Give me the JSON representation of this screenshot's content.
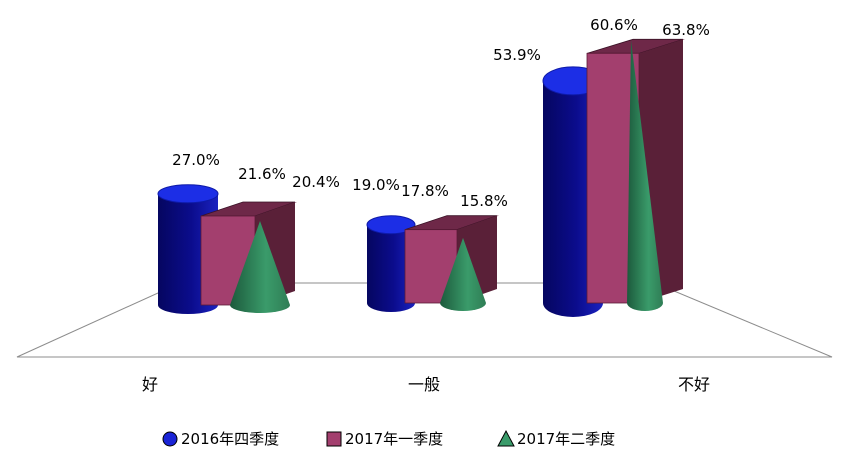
{
  "chart_data": {
    "type": "bar",
    "categories": [
      "好",
      "一般",
      "不好"
    ],
    "series": [
      {
        "name": "2016年四季度",
        "shape": "cylinder",
        "values": [
          27.0,
          19.0,
          53.9
        ],
        "labels": [
          "27.0%",
          "19.0%",
          "53.9%"
        ]
      },
      {
        "name": "2017年一季度",
        "shape": "box",
        "values": [
          21.6,
          17.8,
          60.6
        ],
        "labels": [
          "21.6%",
          "17.8%",
          "60.6%"
        ]
      },
      {
        "name": "2017年二季度",
        "shape": "cone",
        "values": [
          20.4,
          15.8,
          63.8
        ],
        "labels": [
          "20.4%",
          "15.8%",
          "63.8%"
        ]
      }
    ],
    "title": "",
    "xlabel": "",
    "ylabel": "",
    "unit": "%",
    "grid": false,
    "legend_position": "bottom"
  },
  "colors": {
    "cylinder_front": "#0b0c8c",
    "cylinder_top": "#1c2ee6",
    "box_front": "#a33f6e",
    "box_side": "#5a2038",
    "box_top": "#6e2848",
    "cone_light": "#3a9b6a",
    "cone_dark": "#1c5a3c",
    "floor_line": "#8c8c8c"
  }
}
